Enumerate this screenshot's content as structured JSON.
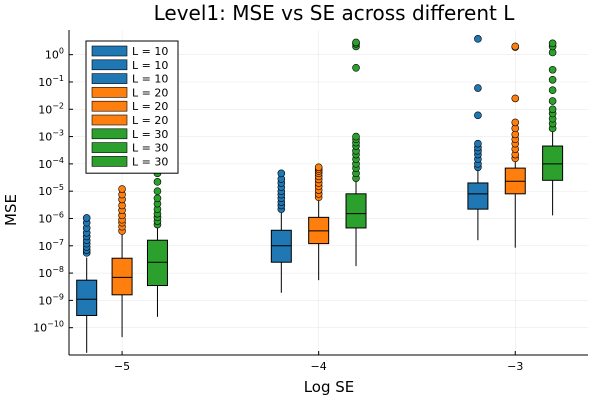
{
  "chart_data": {
    "type": "box",
    "title": "Level1: MSE vs SE across different L",
    "xlabel": "Log SE",
    "ylabel": "MSE",
    "y_scale": "log10",
    "ylim": [
      1e-11,
      8
    ],
    "xlim": [
      -5.27,
      -2.63
    ],
    "x_ticks": [
      {
        "value": -5,
        "label": "−5"
      },
      {
        "value": -4,
        "label": "−4"
      },
      {
        "value": -3,
        "label": "−3"
      }
    ],
    "y_ticks": [
      {
        "exp": -10,
        "base": "10",
        "sup": "−10"
      },
      {
        "exp": -9,
        "base": "10",
        "sup": "−9"
      },
      {
        "exp": -8,
        "base": "10",
        "sup": "−8"
      },
      {
        "exp": -7,
        "base": "10",
        "sup": "−7"
      },
      {
        "exp": -6,
        "base": "10",
        "sup": "−6"
      },
      {
        "exp": -5,
        "base": "10",
        "sup": "−5"
      },
      {
        "exp": -4,
        "base": "10",
        "sup": "−4"
      },
      {
        "exp": -3,
        "base": "10",
        "sup": "−3"
      },
      {
        "exp": -2,
        "base": "10",
        "sup": "−2"
      },
      {
        "exp": -1,
        "base": "10",
        "sup": "−1"
      },
      {
        "exp": 0,
        "base": "10",
        "sup": "0"
      }
    ],
    "grid": true,
    "legend_position": "top-left",
    "legend": [
      {
        "label": "L = 10",
        "color": "#1f77b4"
      },
      {
        "label": "L = 10",
        "color": "#1f77b4"
      },
      {
        "label": "L = 10",
        "color": "#1f77b4"
      },
      {
        "label": "L = 20",
        "color": "#ff7f0e"
      },
      {
        "label": "L = 20",
        "color": "#ff7f0e"
      },
      {
        "label": "L = 20",
        "color": "#ff7f0e"
      },
      {
        "label": "L = 30",
        "color": "#2ca02c"
      },
      {
        "label": "L = 30",
        "color": "#2ca02c"
      },
      {
        "label": "L = 30",
        "color": "#2ca02c"
      }
    ],
    "boxes": [
      {
        "group": "L = 10",
        "color": "#1f77b4",
        "x": -5.18,
        "whisker_low": 1.2e-11,
        "q1": 2.8e-10,
        "median": 1.1e-09,
        "q3": 5.5e-09,
        "whisker_high": 3.7e-08,
        "outliers": [
          5.5e-08,
          7e-08,
          9e-08,
          1.2e-07,
          1.6e-07,
          2.2e-07,
          3e-07,
          4.5e-07,
          7e-07,
          1.05e-06
        ]
      },
      {
        "group": "L = 20",
        "color": "#ff7f0e",
        "x": -5.0,
        "whisker_low": 4.5e-11,
        "q1": 1.6e-09,
        "median": 7e-09,
        "q3": 3.5e-08,
        "whisker_high": 2.6e-07,
        "outliers": [
          3.5e-07,
          5e-07,
          7e-07,
          9e-07,
          1.3e-06,
          2e-06,
          3e-06,
          5e-06,
          7.5e-06,
          1.2e-05
        ]
      },
      {
        "group": "L = 30",
        "color": "#2ca02c",
        "x": -4.82,
        "whisker_low": 2.5e-10,
        "q1": 3.5e-09,
        "median": 2.5e-08,
        "q3": 1.6e-07,
        "whisker_high": 4.5e-07,
        "outliers": [
          6e-07,
          8e-07,
          1.1e-06,
          1.5e-06,
          2.2e-06,
          3.5e-06,
          5.5e-06,
          1e-05,
          2.2e-05,
          4.5e-05,
          8e-05,
          0.0005,
          0.0006,
          0.013,
          0.028
        ]
      },
      {
        "group": "L = 10",
        "color": "#1f77b4",
        "x": -4.19,
        "whisker_low": 1.9e-09,
        "q1": 2.5e-08,
        "median": 1e-07,
        "q3": 3.7e-07,
        "whisker_high": 1.6e-06,
        "outliers": [
          2.2e-06,
          3e-06,
          4e-06,
          5.5e-06,
          7.5e-06,
          1e-05,
          1.4e-05,
          2e-05,
          2.8e-05,
          4.5e-05
        ]
      },
      {
        "group": "L = 20",
        "color": "#ff7f0e",
        "x": -4.0,
        "whisker_low": 5.5e-09,
        "q1": 1.2e-07,
        "median": 3.5e-07,
        "q3": 1.1e-06,
        "whisker_high": 4.5e-06,
        "outliers": [
          6e-06,
          8e-06,
          1.1e-05,
          1.5e-05,
          2e-05,
          2.7e-05,
          3.5e-05,
          4.5e-05,
          5.5e-05,
          6.5e-05,
          7.5e-05
        ]
      },
      {
        "group": "L = 30",
        "color": "#2ca02c",
        "x": -3.81,
        "whisker_low": 1.8e-08,
        "q1": 4.5e-07,
        "median": 1.5e-06,
        "q3": 8e-06,
        "whisker_high": 2.3e-05,
        "outliers": [
          3e-05,
          4.5e-05,
          7e-05,
          0.0001,
          0.00015,
          0.00022,
          0.0003,
          0.00045,
          0.0006,
          0.0008,
          0.001,
          0.33,
          2.0,
          2.5,
          2.8
        ]
      },
      {
        "group": "L = 10",
        "color": "#1f77b4",
        "x": -3.19,
        "whisker_low": 1.6e-07,
        "q1": 2.2e-06,
        "median": 8e-06,
        "q3": 2e-05,
        "whisker_high": 6e-05,
        "outliers": [
          7.5e-05,
          0.0001,
          0.00015,
          0.00022,
          0.0003,
          0.0004,
          0.00055,
          0.006,
          0.06,
          3.8
        ]
      },
      {
        "group": "L = 20",
        "color": "#ff7f0e",
        "x": -3.0,
        "whisker_low": 8.5e-08,
        "q1": 8e-06,
        "median": 2.3e-05,
        "q3": 7e-05,
        "whisker_high": 0.00013,
        "outliers": [
          0.00016,
          0.00022,
          0.00035,
          0.00055,
          0.0008,
          0.0012,
          0.002,
          0.0033,
          0.025,
          1.9,
          2.0
        ]
      },
      {
        "group": "L = 30",
        "color": "#2ca02c",
        "x": -2.81,
        "whisker_low": 1.3e-06,
        "q1": 2.5e-05,
        "median": 0.0001,
        "q3": 0.00045,
        "whisker_high": 0.0015,
        "outliers": [
          0.002,
          0.003,
          0.0045,
          0.007,
          0.01,
          0.02,
          0.05,
          0.12,
          0.28,
          1.2,
          2.0,
          2.6
        ]
      }
    ]
  }
}
